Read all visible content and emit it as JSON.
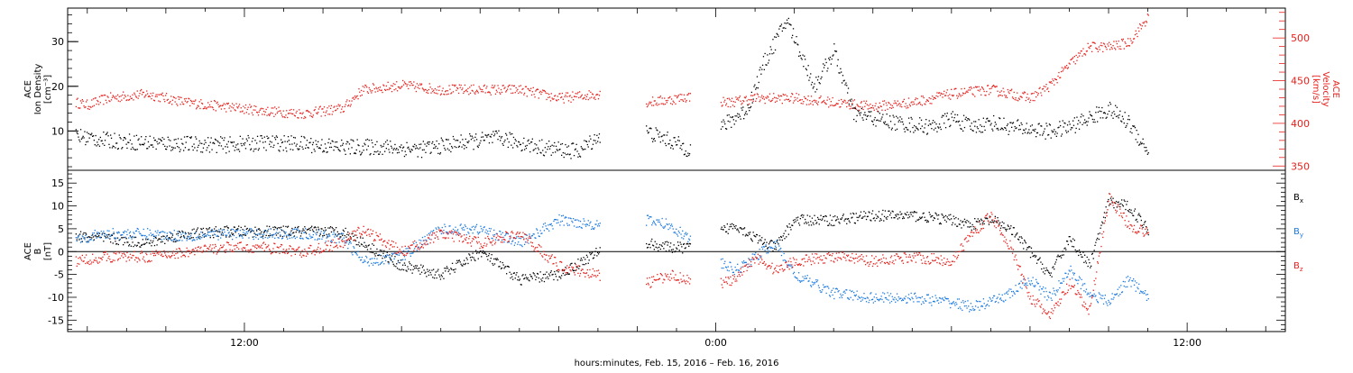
{
  "chart_data": [
    {
      "type": "scatter",
      "x_axis": {
        "label": "hours:minutes, Feb. 15, 2016 – Feb. 16, 2016",
        "range_hours": [
          7.5,
          38.5
        ],
        "tick_labels": [
          {
            "hour": 12,
            "label": "12:00"
          },
          {
            "hour": 24,
            "label": "0:00"
          },
          {
            "hour": 36,
            "label": "12:00"
          }
        ]
      },
      "y_left": {
        "label_lines": [
          "ACE",
          "Ion Density",
          "[cm⁻³]"
        ],
        "range": [
          1.2,
          37.5
        ],
        "ticks": [
          10,
          20,
          30
        ]
      },
      "y_right": {
        "label_lines": [
          "ACE",
          "Velocity",
          "[km/s]"
        ],
        "range": [
          345,
          535
        ],
        "ticks": [
          350,
          400,
          450,
          500
        ],
        "color": "#e8201c"
      },
      "series": [
        {
          "name": "Ion Density",
          "axis": "left",
          "color": "#000000",
          "x_hours": [
            7.7,
            8.5,
            9.5,
            10.5,
            11.5,
            12.5,
            13.5,
            14.5,
            15.5,
            16.5,
            17.5,
            18.5,
            19.5,
            20.5,
            21.0,
            22.2,
            22.8,
            23.3,
            24.3,
            24.8,
            25.2,
            25.5,
            25.8,
            26.5,
            27.0,
            27.5,
            28.5,
            29.5,
            30.0,
            30.5,
            31.0,
            31.5,
            32.5,
            33.0,
            33.5,
            34.0,
            34.5,
            35.0
          ],
          "values": [
            9,
            8,
            7.5,
            7.2,
            7,
            7.5,
            7.2,
            6.5,
            6.5,
            6,
            7.5,
            8.5,
            6.5,
            5.5,
            9,
            10,
            8,
            6,
            12,
            15,
            25,
            30,
            35,
            20,
            28,
            14,
            12,
            11,
            13,
            11,
            12,
            11,
            10,
            11,
            13,
            15,
            12,
            5.5
          ]
        },
        {
          "name": "Velocity",
          "axis": "right",
          "color": "#e8201c",
          "x_hours": [
            7.7,
            8.0,
            8.5,
            9.5,
            10.0,
            10.5,
            11.5,
            12.5,
            13.5,
            14.5,
            15.0,
            16.0,
            17.0,
            18.0,
            19.0,
            20.0,
            21.0,
            22.2,
            22.8,
            23.3,
            24.3,
            25.0,
            26.0,
            27.0,
            28.0,
            29.0,
            30.0,
            31.0,
            32.0,
            32.5,
            33.0,
            33.5,
            34.0,
            34.5,
            35.0
          ],
          "values": [
            425,
            422,
            430,
            435,
            430,
            425,
            420,
            415,
            412,
            418,
            440,
            445,
            440,
            440,
            440,
            430,
            435,
            425,
            428,
            432,
            425,
            430,
            430,
            425,
            420,
            425,
            435,
            440,
            430,
            445,
            470,
            490,
            490,
            495,
            525
          ]
        }
      ]
    },
    {
      "type": "scatter",
      "x_axis": {
        "range_hours": [
          7.5,
          38.5
        ],
        "tick_labels": [
          {
            "hour": 12,
            "label": "12:00"
          },
          {
            "hour": 24,
            "label": "0:00"
          },
          {
            "hour": 36,
            "label": "12:00"
          }
        ]
      },
      "y_left": {
        "label_lines": [
          "ACE",
          "B",
          "[nT]"
        ],
        "range": [
          -17.5,
          17.8
        ],
        "ticks": [
          -15,
          -10,
          -5,
          0,
          5,
          10,
          15
        ]
      },
      "zero_line": true,
      "legend": {
        "placement": "right",
        "entries": [
          {
            "base": "B",
            "sub": "x",
            "color": "#000000"
          },
          {
            "base": "B",
            "sub": "y",
            "color": "#1a7ae0"
          },
          {
            "base": "B",
            "sub": "z",
            "color": "#e8201c"
          }
        ]
      },
      "series": [
        {
          "name": "Bx",
          "color": "#000000",
          "x_hours": [
            7.7,
            8.5,
            9.5,
            10.5,
            11.5,
            12.5,
            13.5,
            14.5,
            15.0,
            16.0,
            17.0,
            18.0,
            19.0,
            20.0,
            21.0,
            22.2,
            22.8,
            23.3,
            24.0,
            24.5,
            25.0,
            25.5,
            26.0,
            27.0,
            28.0,
            29.0,
            30.0,
            30.5,
            31.0,
            31.5,
            32.0,
            32.5,
            33.0,
            33.5,
            34.0,
            34.5,
            35.0
          ],
          "values": [
            3.5,
            3,
            2,
            4,
            4.5,
            4.5,
            4.5,
            4.5,
            2,
            -3,
            -5,
            0,
            -6,
            -5,
            0,
            2,
            1,
            1,
            4,
            6,
            3,
            1,
            7,
            7,
            8,
            8,
            7,
            6,
            7,
            5,
            0,
            -5,
            3,
            -3,
            11,
            10,
            5
          ]
        },
        {
          "name": "By",
          "color": "#1a7ae0",
          "x_hours": [
            7.7,
            8.5,
            9.5,
            10.5,
            11.5,
            12.5,
            13.5,
            14.5,
            15.0,
            16.0,
            17.0,
            18.0,
            19.0,
            20.0,
            21.0,
            22.2,
            22.8,
            23.3,
            24.0,
            24.5,
            25.0,
            25.5,
            26.0,
            27.0,
            28.0,
            29.0,
            30.0,
            30.5,
            31.0,
            31.5,
            32.0,
            32.5,
            33.0,
            33.5,
            34.0,
            34.5,
            35.0
          ],
          "values": [
            3,
            4,
            4,
            3.5,
            4,
            4,
            4,
            3,
            -2,
            -1,
            5,
            5,
            2,
            7,
            6,
            7,
            6,
            3,
            -2,
            -4,
            -1,
            2,
            -5,
            -9,
            -10,
            -10,
            -11,
            -12,
            -11,
            -9,
            -6,
            -10,
            -4,
            -9,
            -11,
            -6,
            -10
          ]
        },
        {
          "name": "Bz",
          "color": "#e8201c",
          "x_hours": [
            7.7,
            8.5,
            9.5,
            10.5,
            11.5,
            12.5,
            13.5,
            14.5,
            15.0,
            16.0,
            17.0,
            18.0,
            19.0,
            20.0,
            21.0,
            22.2,
            22.8,
            23.3,
            24.0,
            24.5,
            25.0,
            25.5,
            26.0,
            27.0,
            28.0,
            29.0,
            30.0,
            30.5,
            31.0,
            31.5,
            32.0,
            32.5,
            33.0,
            33.5,
            34.0,
            34.5,
            35.0
          ],
          "values": [
            -2,
            -1,
            -1,
            0,
            1,
            1,
            0,
            2,
            5,
            0,
            4,
            2,
            4,
            -3,
            -5,
            -7,
            -5,
            -6,
            -7,
            -6,
            -1,
            -4,
            -2,
            -1,
            -2,
            -1,
            -2,
            4,
            8,
            1,
            -10,
            -14,
            -7,
            -13,
            12,
            6,
            4
          ]
        }
      ]
    }
  ]
}
